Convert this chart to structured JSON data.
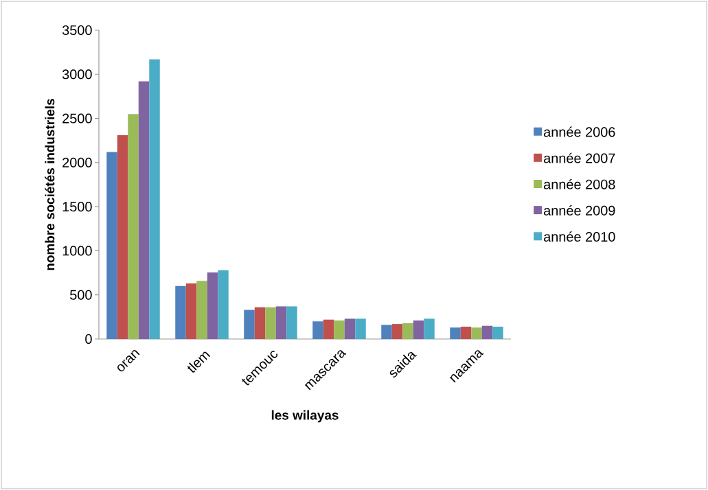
{
  "chart_data": {
    "type": "bar",
    "xlabel": "les wilayas",
    "ylabel": "nombre sociétés industriels",
    "categories": [
      "oran",
      "tlem",
      "temouc",
      "mascara",
      "saida",
      "naama"
    ],
    "series": [
      {
        "name": "année 2006",
        "color": "#4f81bd",
        "values": [
          2120,
          600,
          330,
          200,
          160,
          130
        ]
      },
      {
        "name": "année 2007",
        "color": "#c0504d",
        "values": [
          2310,
          630,
          360,
          220,
          170,
          140
        ]
      },
      {
        "name": "année 2008",
        "color": "#9bbb59",
        "values": [
          2550,
          660,
          360,
          210,
          180,
          130
        ]
      },
      {
        "name": "année 2009",
        "color": "#8064a2",
        "values": [
          2920,
          755,
          370,
          230,
          210,
          150
        ]
      },
      {
        "name": "année 2010",
        "color": "#4bacc6",
        "values": [
          3170,
          780,
          370,
          230,
          230,
          140
        ]
      }
    ],
    "ylim": [
      0,
      3500
    ],
    "yticks": [
      0,
      500,
      1000,
      1500,
      2000,
      2500,
      3000,
      3500
    ],
    "grid": false,
    "legend": "right"
  }
}
